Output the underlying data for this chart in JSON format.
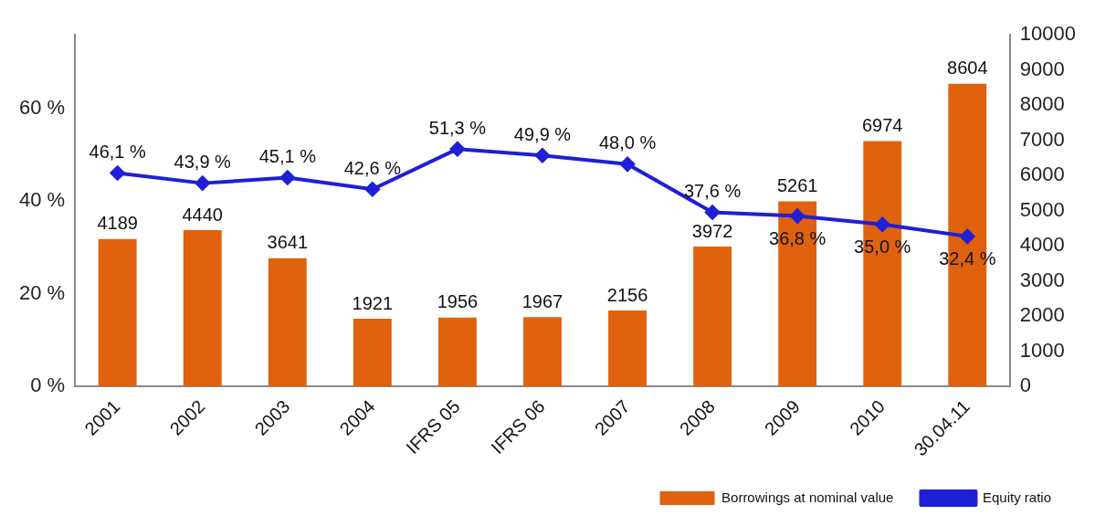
{
  "chart_data": {
    "type": "bar",
    "categories": [
      "2001",
      "2002",
      "2003",
      "2004",
      "IFRS 05",
      "IFRS 06",
      "2007",
      "2008",
      "2009",
      "2010",
      "30.04.11"
    ],
    "series": [
      {
        "name": "Borrowings at nominal value",
        "axis": "y2",
        "color": "#e0620e",
        "values": [
          4189,
          4440,
          3641,
          1921,
          1956,
          1967,
          2156,
          3972,
          5261,
          6974,
          8604
        ],
        "value_labels": [
          "4189",
          "4440",
          "3641",
          "1921",
          "1956",
          "1967",
          "2156",
          "3972",
          "5261",
          "6974",
          "8604"
        ]
      },
      {
        "name": "Equity ratio",
        "type": "line",
        "axis": "y",
        "color": "#1f1fd6",
        "marker": "diamond",
        "values": [
          46.1,
          43.9,
          45.1,
          42.6,
          51.3,
          49.9,
          48.0,
          37.6,
          36.8,
          35.0,
          32.4
        ],
        "value_labels": [
          "46,1 %",
          "43,9 %",
          "45,1 %",
          "42,6 %",
          "51,3 %",
          "49,9 %",
          "48,0 %",
          "37,6 %",
          "36,8 %",
          "35,0 %",
          "32,4 %"
        ]
      }
    ],
    "ylim": [
      0,
      76
    ],
    "yticks": [
      {
        "value": 0,
        "label": "0 %"
      },
      {
        "value": 20,
        "label": "20 %"
      },
      {
        "value": 40,
        "label": "40 %"
      },
      {
        "value": 60,
        "label": "60 %"
      }
    ],
    "y2lim": [
      0,
      10000
    ],
    "y2ticks": [
      0,
      1000,
      2000,
      3000,
      4000,
      5000,
      6000,
      7000,
      8000,
      9000,
      10000
    ],
    "grid": false,
    "legend": "bottom right"
  }
}
